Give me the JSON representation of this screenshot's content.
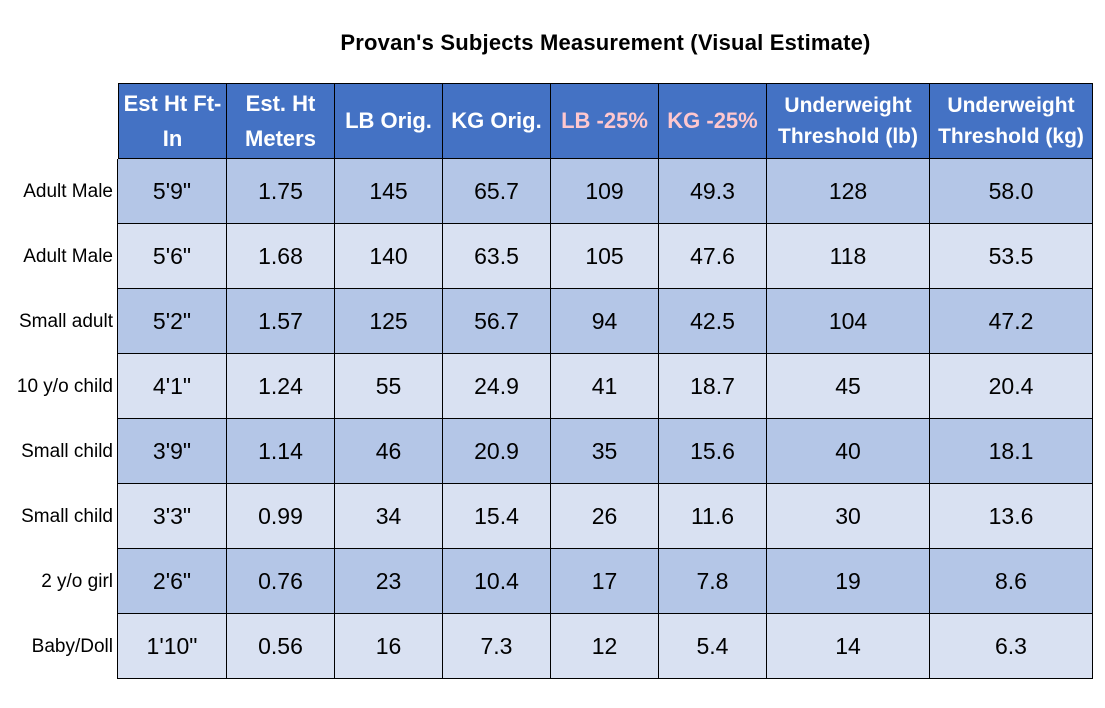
{
  "title": "Provan's Subjects Measurement (Visual Estimate)",
  "headers": [
    "Est Ht Ft-In",
    "Est. Ht Meters",
    "LB Orig.",
    "KG Orig.",
    "LB -25%",
    "KG -25%",
    "Underweight Threshold (lb)",
    "Underweight Threshold (kg)"
  ],
  "colors": {
    "header_bg": "#4472c4",
    "header_text": "#ffffff",
    "header_highlight_text": "#ffc7ce",
    "row_dark": "#b4c6e7",
    "row_light": "#d9e1f2"
  },
  "rows": [
    {
      "label": "Adult Male",
      "cells": [
        "5'9\"",
        "1.75",
        "145",
        "65.7",
        "109",
        "49.3",
        "128",
        "58.0"
      ]
    },
    {
      "label": "Adult Male",
      "cells": [
        "5'6\"",
        "1.68",
        "140",
        "63.5",
        "105",
        "47.6",
        "118",
        "53.5"
      ]
    },
    {
      "label": "Small adult",
      "cells": [
        "5'2\"",
        "1.57",
        "125",
        "56.7",
        "94",
        "42.5",
        "104",
        "47.2"
      ]
    },
    {
      "label": "10 y/o child",
      "cells": [
        "4'1\"",
        "1.24",
        "55",
        "24.9",
        "41",
        "18.7",
        "45",
        "20.4"
      ]
    },
    {
      "label": "Small child",
      "cells": [
        "3'9\"",
        "1.14",
        "46",
        "20.9",
        "35",
        "15.6",
        "40",
        "18.1"
      ]
    },
    {
      "label": "Small child",
      "cells": [
        "3'3\"",
        "0.99",
        "34",
        "15.4",
        "26",
        "11.6",
        "30",
        "13.6"
      ]
    },
    {
      "label": "2 y/o girl",
      "cells": [
        "2'6\"",
        "0.76",
        "23",
        "10.4",
        "17",
        "7.8",
        "19",
        "8.6"
      ]
    },
    {
      "label": "Baby/Doll",
      "cells": [
        "1'10\"",
        "0.56",
        "16",
        "7.3",
        "12",
        "5.4",
        "14",
        "6.3"
      ]
    }
  ]
}
